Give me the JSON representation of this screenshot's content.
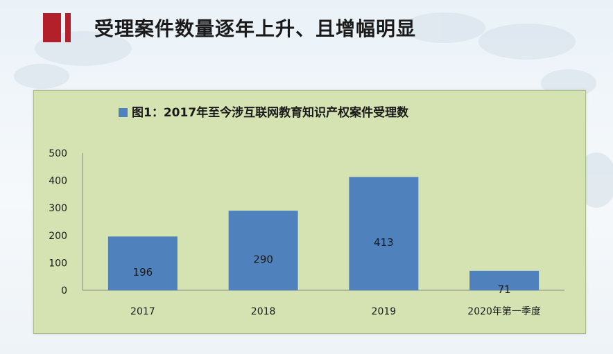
{
  "page": {
    "title": "受理案件数量逐年上升、且增幅明显"
  },
  "chart_data": {
    "type": "bar",
    "title": "图1：2017年至今涉互联网教育知识产权案件受理数",
    "categories": [
      "2017",
      "2018",
      "2019",
      "2020年第一季度"
    ],
    "series": [
      {
        "values": [
          196,
          290,
          413,
          71
        ]
      }
    ],
    "data_labels": [
      "196",
      "290",
      "413",
      "71"
    ],
    "yticks": [
      "0",
      "100",
      "200",
      "300",
      "400",
      "500"
    ],
    "ylim": [
      0,
      500
    ],
    "xlabel": "",
    "ylabel": "",
    "grid": false,
    "legend": "none",
    "bar_color": "#4f81bd",
    "background_color": "#d5e3b3"
  },
  "colors": {
    "accent": "#b3202a"
  }
}
